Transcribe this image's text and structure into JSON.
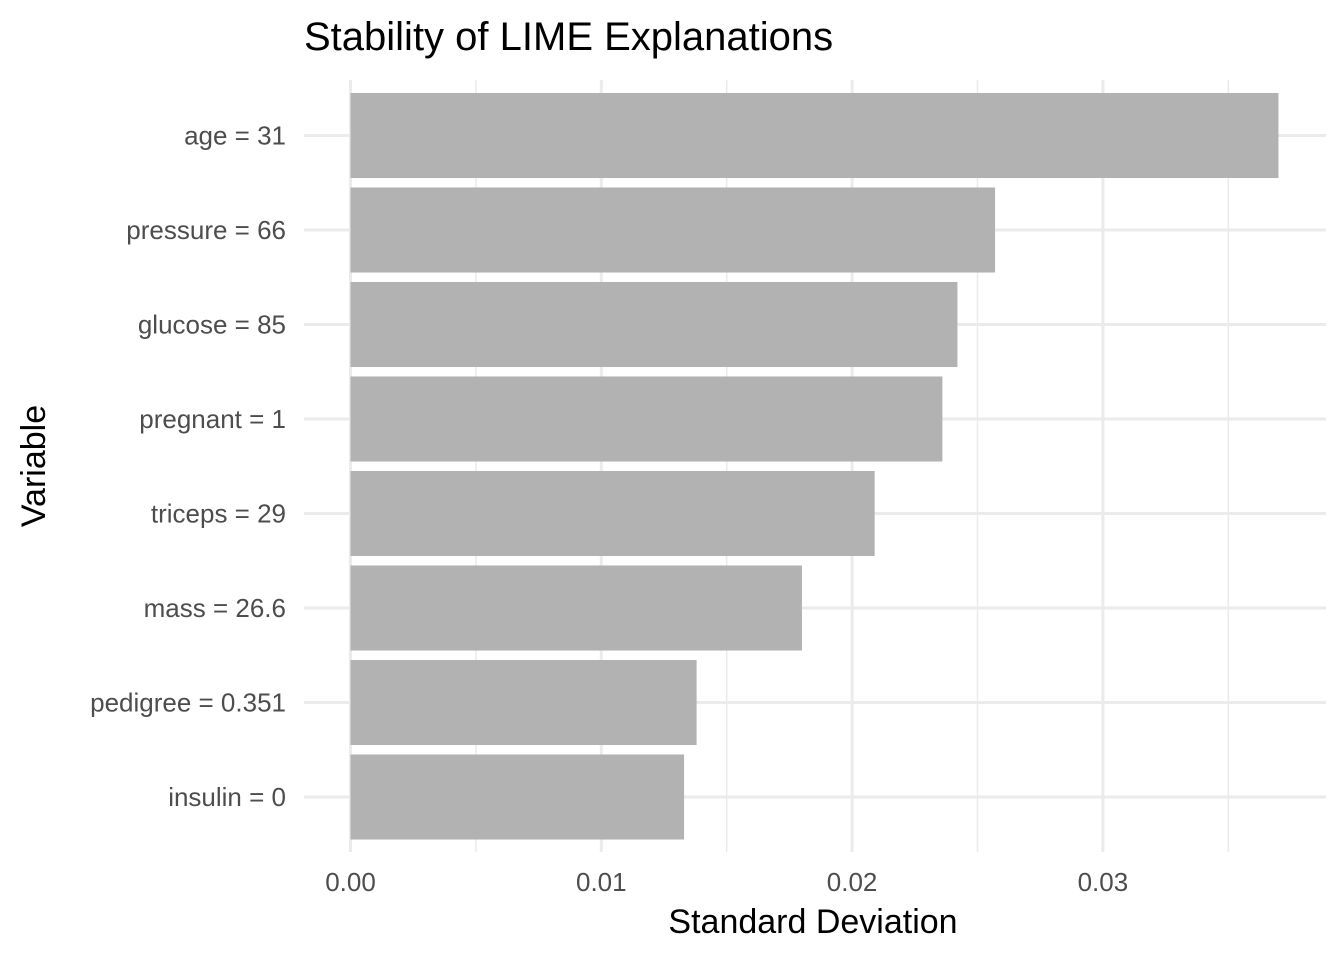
{
  "chart_data": {
    "type": "bar",
    "orientation": "horizontal",
    "title": "Stability of LIME Explanations",
    "xlabel": "Standard Deviation",
    "ylabel": "Variable",
    "categories": [
      "age = 31",
      "pressure = 66",
      "glucose = 85",
      "pregnant = 1",
      "triceps = 29",
      "mass = 26.6",
      "pedigree = 0.351",
      "insulin = 0"
    ],
    "values": [
      0.037,
      0.0257,
      0.0242,
      0.0236,
      0.0209,
      0.018,
      0.0138,
      0.0133
    ],
    "xlim": [
      0,
      0.0389
    ],
    "xticks": [
      0.0,
      0.01,
      0.02,
      0.03
    ],
    "xtick_labels": [
      "0.00",
      "0.01",
      "0.02",
      "0.03"
    ],
    "grid": true,
    "bar_color": "#b2b2b2",
    "grid_color": "#ebebeb"
  }
}
